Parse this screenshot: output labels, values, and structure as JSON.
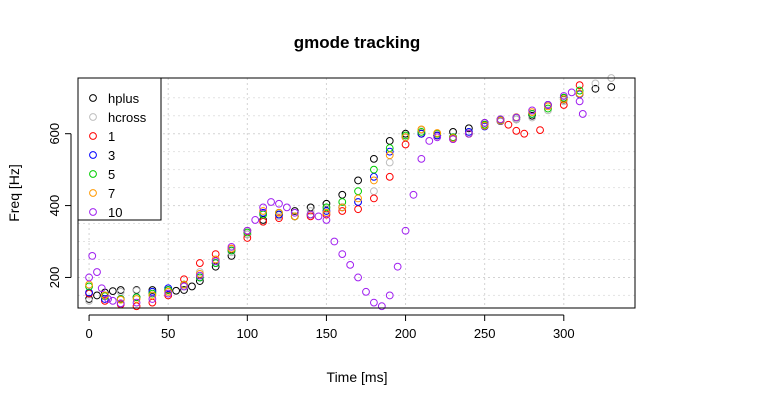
{
  "chart_data": {
    "type": "scatter",
    "title": "gmode tracking",
    "xlabel": "Time [ms]",
    "ylabel": "Freq [Hz]",
    "xlim": [
      -7,
      345
    ],
    "ylim": [
      115,
      755
    ],
    "xticks": [
      0,
      50,
      100,
      150,
      200,
      250,
      300
    ],
    "yticks": [
      200,
      400,
      600
    ],
    "grid": true,
    "grid_style": "dotted",
    "marker": "open-circle",
    "legend_position": "top-left",
    "series": [
      {
        "name": "hplus",
        "color": "#000000",
        "points": [
          [
            0,
            140
          ],
          [
            5,
            150
          ],
          [
            10,
            158
          ],
          [
            15,
            162
          ],
          [
            20,
            165
          ],
          [
            30,
            165
          ],
          [
            40,
            165
          ],
          [
            50,
            165
          ],
          [
            55,
            163
          ],
          [
            60,
            165
          ],
          [
            65,
            175
          ],
          [
            70,
            190
          ],
          [
            80,
            230
          ],
          [
            90,
            260
          ],
          [
            100,
            320
          ],
          [
            110,
            360
          ],
          [
            120,
            375
          ],
          [
            130,
            385
          ],
          [
            140,
            395
          ],
          [
            150,
            405
          ],
          [
            160,
            430
          ],
          [
            170,
            470
          ],
          [
            180,
            530
          ],
          [
            190,
            580
          ],
          [
            200,
            600
          ],
          [
            210,
            600
          ],
          [
            220,
            595
          ],
          [
            230,
            605
          ],
          [
            240,
            615
          ],
          [
            250,
            630
          ],
          [
            260,
            635
          ],
          [
            270,
            640
          ],
          [
            280,
            650
          ],
          [
            290,
            680
          ],
          [
            300,
            695
          ],
          [
            310,
            710
          ],
          [
            320,
            725
          ],
          [
            330,
            730
          ]
        ]
      },
      {
        "name": "hcross",
        "color": "#bebebe",
        "points": [
          [
            0,
            135
          ],
          [
            10,
            150
          ],
          [
            20,
            160
          ],
          [
            30,
            163
          ],
          [
            40,
            160
          ],
          [
            50,
            160
          ],
          [
            60,
            175
          ],
          [
            70,
            215
          ],
          [
            80,
            250
          ],
          [
            90,
            270
          ],
          [
            100,
            320
          ],
          [
            110,
            355
          ],
          [
            120,
            370
          ],
          [
            130,
            380
          ],
          [
            140,
            385
          ],
          [
            150,
            390
          ],
          [
            160,
            395
          ],
          [
            170,
            410
          ],
          [
            180,
            440
          ],
          [
            190,
            520
          ],
          [
            200,
            590
          ],
          [
            210,
            610
          ],
          [
            220,
            595
          ],
          [
            230,
            590
          ],
          [
            240,
            605
          ],
          [
            250,
            625
          ],
          [
            260,
            635
          ],
          [
            270,
            640
          ],
          [
            280,
            645
          ],
          [
            290,
            665
          ],
          [
            300,
            690
          ],
          [
            310,
            710
          ],
          [
            320,
            740
          ],
          [
            330,
            755
          ]
        ]
      },
      {
        "name": "1",
        "color": "#ff0000",
        "points": [
          [
            0,
            155
          ],
          [
            10,
            135
          ],
          [
            20,
            125
          ],
          [
            30,
            120
          ],
          [
            40,
            130
          ],
          [
            50,
            150
          ],
          [
            60,
            195
          ],
          [
            70,
            240
          ],
          [
            80,
            265
          ],
          [
            90,
            280
          ],
          [
            100,
            310
          ],
          [
            110,
            355
          ],
          [
            120,
            365
          ],
          [
            130,
            370
          ],
          [
            140,
            370
          ],
          [
            150,
            375
          ],
          [
            160,
            385
          ],
          [
            170,
            390
          ],
          [
            180,
            420
          ],
          [
            190,
            480
          ],
          [
            200,
            570
          ],
          [
            210,
            600
          ],
          [
            220,
            595
          ],
          [
            230,
            585
          ],
          [
            240,
            600
          ],
          [
            250,
            625
          ],
          [
            260,
            640
          ],
          [
            265,
            625
          ],
          [
            270,
            608
          ],
          [
            275,
            600
          ],
          [
            285,
            610
          ],
          [
            300,
            680
          ],
          [
            310,
            735
          ]
        ]
      },
      {
        "name": "3",
        "color": "#0000ff",
        "points": [
          [
            0,
            158
          ],
          [
            10,
            140
          ],
          [
            20,
            140
          ],
          [
            30,
            145
          ],
          [
            40,
            160
          ],
          [
            50,
            170
          ],
          [
            60,
            180
          ],
          [
            70,
            200
          ],
          [
            80,
            240
          ],
          [
            90,
            275
          ],
          [
            100,
            330
          ],
          [
            110,
            380
          ],
          [
            120,
            375
          ],
          [
            130,
            370
          ],
          [
            140,
            375
          ],
          [
            150,
            385
          ],
          [
            160,
            395
          ],
          [
            170,
            410
          ],
          [
            180,
            480
          ],
          [
            190,
            550
          ],
          [
            200,
            590
          ],
          [
            210,
            600
          ],
          [
            220,
            595
          ],
          [
            230,
            590
          ],
          [
            240,
            605
          ],
          [
            250,
            620
          ],
          [
            260,
            635
          ],
          [
            270,
            645
          ],
          [
            280,
            655
          ],
          [
            290,
            680
          ],
          [
            300,
            700
          ],
          [
            310,
            710
          ]
        ]
      },
      {
        "name": "5",
        "color": "#00cd00",
        "points": [
          [
            0,
            175
          ],
          [
            10,
            148
          ],
          [
            20,
            140
          ],
          [
            30,
            145
          ],
          [
            40,
            155
          ],
          [
            50,
            165
          ],
          [
            60,
            180
          ],
          [
            70,
            200
          ],
          [
            80,
            240
          ],
          [
            90,
            275
          ],
          [
            100,
            325
          ],
          [
            110,
            375
          ],
          [
            120,
            380
          ],
          [
            130,
            370
          ],
          [
            140,
            375
          ],
          [
            150,
            395
          ],
          [
            160,
            410
          ],
          [
            170,
            440
          ],
          [
            180,
            500
          ],
          [
            190,
            560
          ],
          [
            200,
            595
          ],
          [
            210,
            605
          ],
          [
            220,
            600
          ],
          [
            230,
            590
          ],
          [
            240,
            600
          ],
          [
            250,
            625
          ],
          [
            260,
            638
          ],
          [
            270,
            645
          ],
          [
            280,
            655
          ],
          [
            290,
            670
          ],
          [
            300,
            700
          ],
          [
            310,
            720
          ]
        ]
      },
      {
        "name": "7",
        "color": "#ff9900",
        "points": [
          [
            0,
            180
          ],
          [
            10,
            150
          ],
          [
            20,
            138
          ],
          [
            30,
            140
          ],
          [
            40,
            150
          ],
          [
            50,
            160
          ],
          [
            60,
            180
          ],
          [
            70,
            210
          ],
          [
            80,
            250
          ],
          [
            90,
            280
          ],
          [
            100,
            330
          ],
          [
            110,
            385
          ],
          [
            120,
            380
          ],
          [
            130,
            370
          ],
          [
            140,
            375
          ],
          [
            150,
            380
          ],
          [
            160,
            395
          ],
          [
            170,
            420
          ],
          [
            180,
            470
          ],
          [
            190,
            540
          ],
          [
            200,
            590
          ],
          [
            210,
            612
          ],
          [
            220,
            602
          ],
          [
            230,
            588
          ],
          [
            240,
            600
          ],
          [
            250,
            622
          ],
          [
            260,
            636
          ],
          [
            270,
            646
          ],
          [
            280,
            660
          ],
          [
            290,
            676
          ],
          [
            300,
            696
          ],
          [
            310,
            712
          ]
        ]
      },
      {
        "name": "10",
        "color": "#a020f0",
        "points": [
          [
            0,
            200
          ],
          [
            2,
            260
          ],
          [
            5,
            215
          ],
          [
            8,
            170
          ],
          [
            12,
            140
          ],
          [
            15,
            135
          ],
          [
            20,
            128
          ],
          [
            30,
            130
          ],
          [
            40,
            140
          ],
          [
            50,
            155
          ],
          [
            60,
            175
          ],
          [
            70,
            205
          ],
          [
            80,
            245
          ],
          [
            90,
            285
          ],
          [
            100,
            330
          ],
          [
            105,
            360
          ],
          [
            110,
            395
          ],
          [
            115,
            410
          ],
          [
            120,
            405
          ],
          [
            125,
            395
          ],
          [
            130,
            380
          ],
          [
            140,
            375
          ],
          [
            145,
            370
          ],
          [
            150,
            360
          ],
          [
            155,
            300
          ],
          [
            160,
            265
          ],
          [
            165,
            235
          ],
          [
            170,
            200
          ],
          [
            175,
            160
          ],
          [
            180,
            130
          ],
          [
            185,
            120
          ],
          [
            190,
            150
          ],
          [
            195,
            230
          ],
          [
            200,
            330
          ],
          [
            205,
            430
          ],
          [
            210,
            530
          ],
          [
            215,
            580
          ],
          [
            220,
            590
          ],
          [
            230,
            585
          ],
          [
            240,
            600
          ],
          [
            250,
            630
          ],
          [
            260,
            640
          ],
          [
            270,
            645
          ],
          [
            280,
            665
          ],
          [
            290,
            680
          ],
          [
            300,
            705
          ],
          [
            305,
            715
          ],
          [
            310,
            690
          ],
          [
            312,
            655
          ]
        ]
      }
    ]
  }
}
